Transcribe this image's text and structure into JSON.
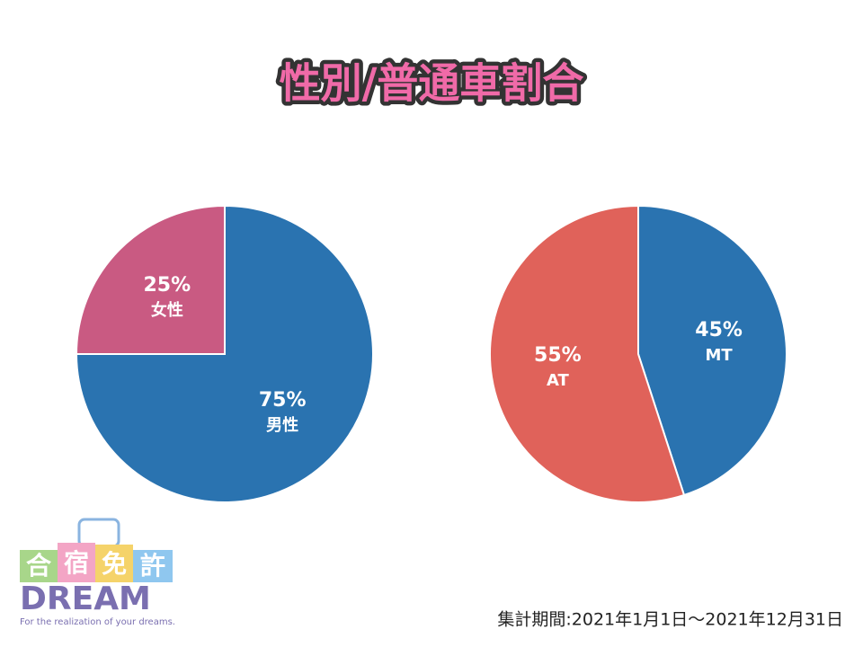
{
  "title": "性別/普通車割合",
  "chart_data": [
    {
      "type": "pie",
      "categories": [
        "男性",
        "女性"
      ],
      "values": [
        75,
        25
      ],
      "value_labels": [
        "75%",
        "25%"
      ],
      "colors": [
        "#2a73b0",
        "#c95a82"
      ]
    },
    {
      "type": "pie",
      "categories": [
        "MT",
        "AT"
      ],
      "values": [
        45,
        55
      ],
      "value_labels": [
        "45%",
        "55%"
      ],
      "colors": [
        "#2a73b0",
        "#e0625a"
      ]
    }
  ],
  "period": "集計期間:2021年1月1日～2021年12月31日",
  "logo": {
    "chars": [
      "合",
      "宿",
      "免",
      "許"
    ],
    "name": "DREAM",
    "tagline": "For the realization of your dreams."
  }
}
